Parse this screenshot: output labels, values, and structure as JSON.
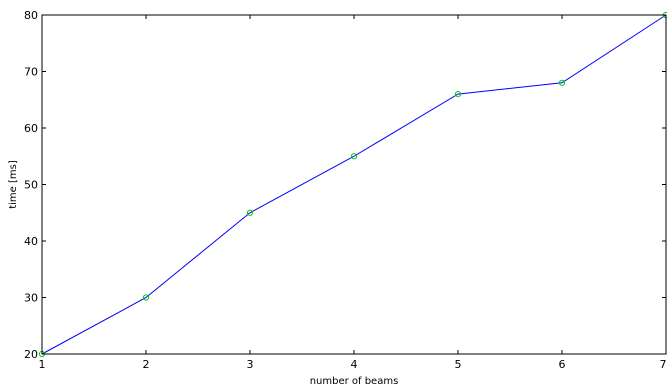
{
  "chart_data": {
    "type": "line",
    "xlabel": "number of beams",
    "ylabel": "time [ms]",
    "xlim": [
      1,
      7
    ],
    "ylim": [
      20,
      80
    ],
    "x_ticks": [
      1,
      2,
      3,
      4,
      5,
      6,
      7
    ],
    "y_ticks": [
      20,
      30,
      40,
      50,
      60,
      70,
      80
    ],
    "grid": false,
    "series": [
      {
        "x": [
          1,
          2,
          3,
          4,
          5,
          6,
          7
        ],
        "values": [
          20,
          30,
          45,
          55,
          66,
          68,
          80
        ],
        "line_color": "#0000ff",
        "marker": "circle",
        "marker_color": "#00cc00"
      }
    ]
  }
}
